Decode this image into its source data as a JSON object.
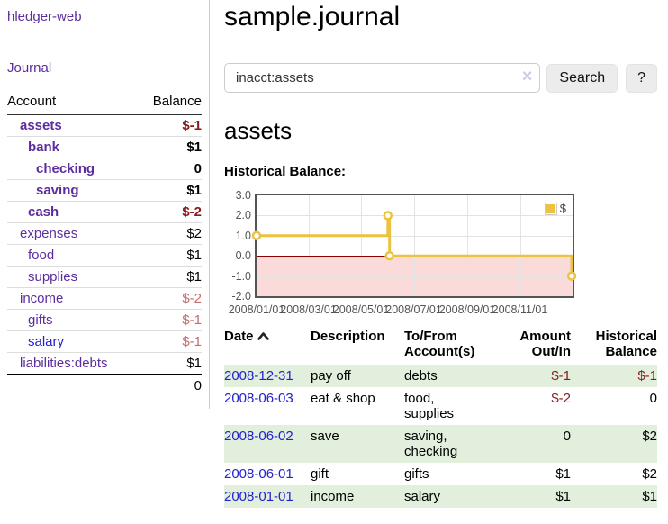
{
  "colors": {
    "link_purple": "#5c2d9e",
    "link_blue": "#2222cc",
    "negative_dark": "#8b1a1a",
    "negative_light": "#c0706f",
    "stripe_green": "#e2efdc",
    "chart_gold": "#edc240",
    "chart_negative_region": "#fbdada",
    "chart_zero_line": "#8b0000"
  },
  "sidebar": {
    "brand": "hledger-web",
    "journal_link": "Journal",
    "accounts_table": {
      "headers": {
        "account": "Account",
        "balance": "Balance"
      },
      "rows": [
        {
          "name": "assets",
          "depth": 0,
          "bold": true,
          "balance": "$-1",
          "balance_style": "neg-dark"
        },
        {
          "name": "bank",
          "depth": 1,
          "bold": true,
          "balance": "$1",
          "balance_style": "pos"
        },
        {
          "name": "checking",
          "depth": 2,
          "bold": true,
          "balance": "0",
          "balance_style": "pos"
        },
        {
          "name": "saving",
          "depth": 2,
          "bold": true,
          "balance": "$1",
          "balance_style": "pos"
        },
        {
          "name": "cash",
          "depth": 1,
          "bold": true,
          "balance": "$-2",
          "balance_style": "neg-dark"
        },
        {
          "name": "expenses",
          "depth": 0,
          "bold": false,
          "balance": "$2",
          "balance_style": "pos"
        },
        {
          "name": "food",
          "depth": 1,
          "bold": false,
          "balance": "$1",
          "balance_style": "pos"
        },
        {
          "name": "supplies",
          "depth": 1,
          "bold": false,
          "balance": "$1",
          "balance_style": "pos"
        },
        {
          "name": "income",
          "depth": 0,
          "bold": false,
          "balance": "$-2",
          "balance_style": "neg-light"
        },
        {
          "name": "gifts",
          "depth": 1,
          "bold": false,
          "balance": "$-1",
          "balance_style": "neg-light"
        },
        {
          "name": "salary",
          "depth": 1,
          "bold": false,
          "balance": "$-1",
          "balance_style": "neg-light",
          "link_style": "blue"
        },
        {
          "name": "liabilities:debts",
          "depth": 0,
          "bold": false,
          "balance": "$1",
          "balance_style": "pos"
        }
      ],
      "total": "0"
    }
  },
  "header": {
    "title": "sample.journal"
  },
  "search": {
    "value": "inacct:assets",
    "clear_icon": "×",
    "button_label": "Search",
    "help_label": "?"
  },
  "main": {
    "account_heading": "assets",
    "chart_title": "Historical Balance:"
  },
  "chart_data": {
    "type": "line",
    "style": "step",
    "title": "Historical Balance",
    "x_range": [
      "2008-01-01",
      "2009-01-01"
    ],
    "ylim": [
      -2.0,
      3.0
    ],
    "yticks": [
      3.0,
      2.0,
      1.0,
      0.0,
      -1.0,
      -2.0
    ],
    "ytick_labels": [
      "3.0",
      "2.0",
      "1.0",
      "0.0",
      "-1.0",
      "-2.0"
    ],
    "xtick_labels": [
      "2008/01/01",
      "2008/03/01",
      "2008/05/01",
      "2008/07/01",
      "2008/09/01",
      "2008/11/01"
    ],
    "grid": true,
    "legend_position": "top-right",
    "series": [
      {
        "name": "$",
        "color": "#edc240",
        "points": [
          {
            "x": "2008-01-01",
            "y": 1
          },
          {
            "x": "2008-06-01",
            "y": 2
          },
          {
            "x": "2008-06-03",
            "y": 0
          },
          {
            "x": "2008-12-31",
            "y": -1
          }
        ]
      }
    ],
    "negative_region": {
      "from": 0.0,
      "to": -2.0
    }
  },
  "register": {
    "headers": {
      "date": "Date",
      "description": "Description",
      "accounts": "To/From Account(s)",
      "amount": "Amount Out/In",
      "balance": "Historical Balance"
    },
    "sort": "ascending",
    "rows": [
      {
        "date": "2008-12-31",
        "description": "pay off",
        "accounts": "debts",
        "amount": "$-1",
        "amount_style": "neg",
        "balance": "$-1",
        "balance_style": "neg",
        "striped": true
      },
      {
        "date": "2008-06-03",
        "description": "eat & shop",
        "accounts": "food, supplies",
        "amount": "$-2",
        "amount_style": "neg",
        "balance": "0",
        "balance_style": "pos",
        "striped": false
      },
      {
        "date": "2008-06-02",
        "description": "save",
        "accounts": "saving, checking",
        "amount": "0",
        "amount_style": "pos",
        "balance": "$2",
        "balance_style": "pos",
        "striped": true
      },
      {
        "date": "2008-06-01",
        "description": "gift",
        "accounts": "gifts",
        "amount": "$1",
        "amount_style": "pos",
        "balance": "$2",
        "balance_style": "pos",
        "striped": false
      },
      {
        "date": "2008-01-01",
        "description": "income",
        "accounts": "salary",
        "amount": "$1",
        "amount_style": "pos",
        "balance": "$1",
        "balance_style": "pos",
        "striped": true
      }
    ]
  }
}
